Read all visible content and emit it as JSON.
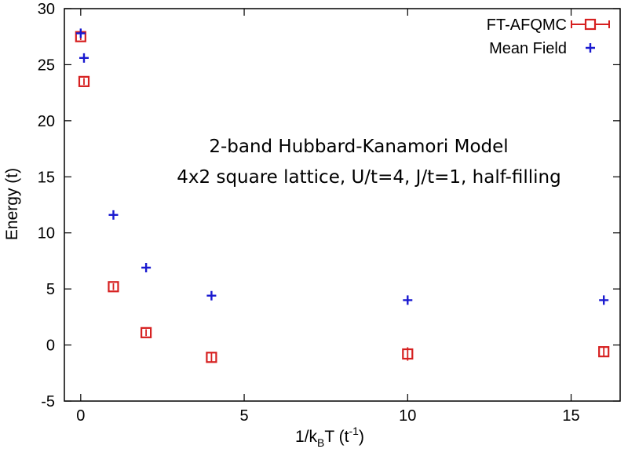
{
  "chart_data": {
    "type": "scatter",
    "title": "",
    "xlabel": "1/k",
    "xlabel_sub": "B",
    "xlabel_mid": "T (t",
    "xlabel_sup": "-1",
    "xlabel_end": ")",
    "ylabel": "Energy (t)",
    "xlim": [
      -0.5,
      16.5
    ],
    "ylim": [
      -5,
      30
    ],
    "x_ticks": [
      0,
      5,
      10,
      15
    ],
    "x_tick_labels": [
      "0",
      "5",
      "10",
      "15"
    ],
    "y_ticks": [
      -5,
      0,
      5,
      10,
      15,
      20,
      25,
      30
    ],
    "y_tick_labels": [
      "-5",
      "0",
      "5",
      "10",
      "15",
      "20",
      "25",
      "30"
    ],
    "grid": false,
    "legend_position": "top-right",
    "annotation": [
      "2-band Hubbard-Kanamori Model",
      "4x2 square lattice, U/t=4, J/t=1, half-filling"
    ],
    "series": [
      {
        "name": "FT-AFQMC",
        "marker": "open-square-with-errorbar",
        "color": "#d62020",
        "x": [
          0,
          0.1,
          1,
          2,
          4,
          10,
          16
        ],
        "y": [
          27.5,
          23.5,
          5.2,
          1.1,
          -1.1,
          -0.8,
          -0.6
        ],
        "err": [
          0.3,
          0.3,
          0.3,
          0.3,
          0.4,
          0.6,
          0.4
        ]
      },
      {
        "name": "Mean Field",
        "marker": "plus",
        "color": "#1a1ad0",
        "x": [
          0,
          0.1,
          1,
          2,
          4,
          10,
          16
        ],
        "y": [
          27.8,
          25.6,
          11.6,
          6.9,
          4.4,
          4.0,
          4.0
        ]
      }
    ]
  }
}
